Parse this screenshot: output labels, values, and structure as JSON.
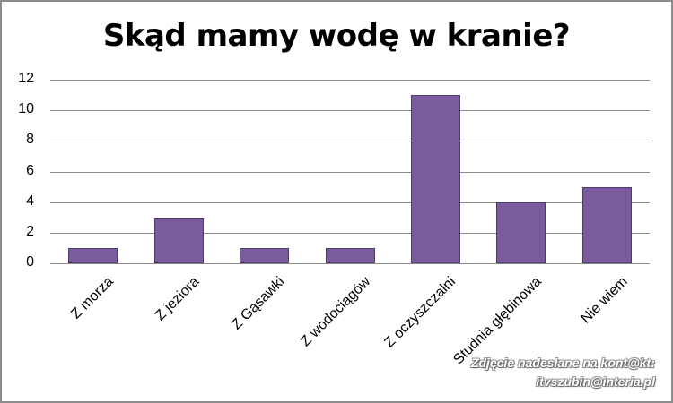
{
  "chart_data": {
    "type": "bar",
    "title": "Skąd mamy wodę w kranie?",
    "categories": [
      "Z morza",
      "Z jeziora",
      "Z Gąsawki",
      "Z wodociągów",
      "Z oczyszczalni",
      "Studnia głębinowa",
      "Nie wiem"
    ],
    "values": [
      1,
      3,
      1,
      1,
      11,
      4,
      5
    ],
    "xlabel": "",
    "ylabel": "",
    "ylim": [
      0,
      12
    ],
    "yticks": [
      "0",
      "2",
      "4",
      "6",
      "8",
      "10",
      "12"
    ],
    "grid": true,
    "legend": null,
    "bar_color": "#7a5c9e"
  },
  "watermark": {
    "line1": "Zdjęcie nadesłane na kont@kt:",
    "line2": "itvszubin@interia.pl"
  }
}
